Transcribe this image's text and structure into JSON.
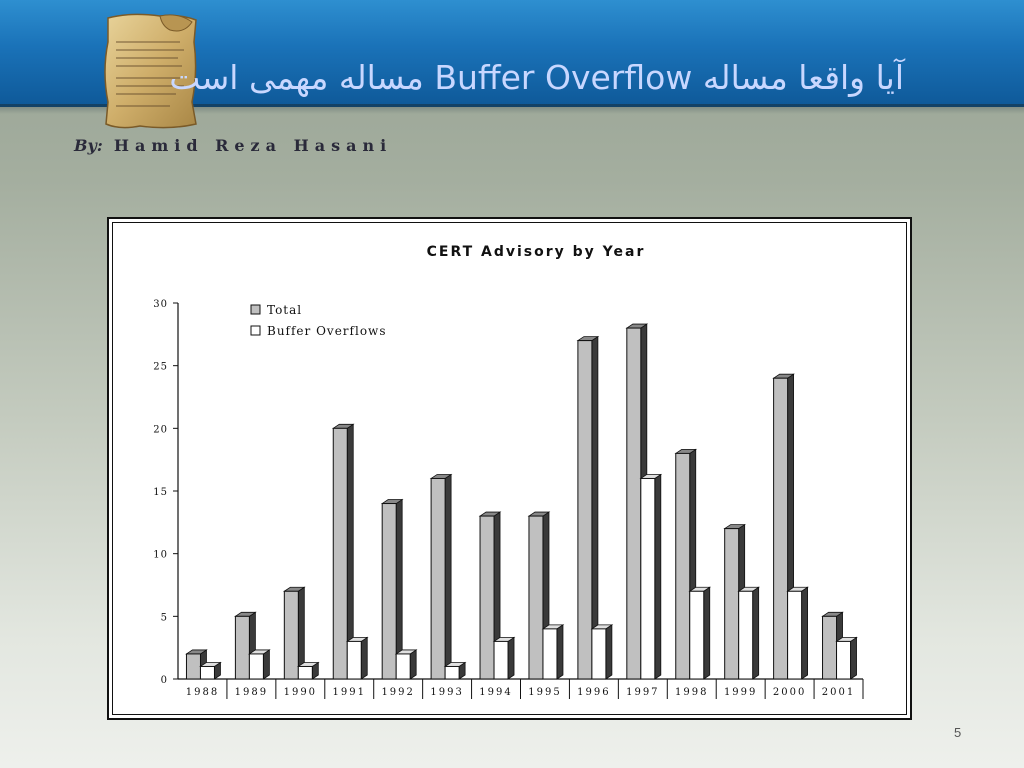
{
  "slide": {
    "title": "آیا واقعا مساله Buffer Overflow مساله مهمی است",
    "by_label": "By:",
    "author": "Hamid Reza Hasani",
    "page_number": "5",
    "title_color": "#c8d7ff",
    "header_color": "#1a72b8"
  },
  "chart_data": {
    "type": "bar",
    "title": "CERT Advisory by Year",
    "xlabel": "",
    "ylabel": "",
    "ylim": [
      0,
      30
    ],
    "yticks": [
      "0",
      "5",
      "10",
      "15",
      "20",
      "25",
      "30"
    ],
    "categories": [
      "1988",
      "1989",
      "1990",
      "1991",
      "1992",
      "1993",
      "1994",
      "1995",
      "1996",
      "1997",
      "1998",
      "1999",
      "2000",
      "2001"
    ],
    "series": [
      {
        "name": "Total",
        "color": "#c0c0c0",
        "values": [
          2,
          5,
          7,
          20,
          14,
          16,
          13,
          13,
          27,
          28,
          18,
          12,
          24,
          5
        ]
      },
      {
        "name": "Buffer Overflows",
        "color": "#ffffff",
        "values": [
          1,
          2,
          1,
          3,
          2,
          1,
          3,
          4,
          4,
          16,
          7,
          7,
          7,
          3
        ]
      }
    ],
    "legend_position": "top-left",
    "grid": false
  }
}
